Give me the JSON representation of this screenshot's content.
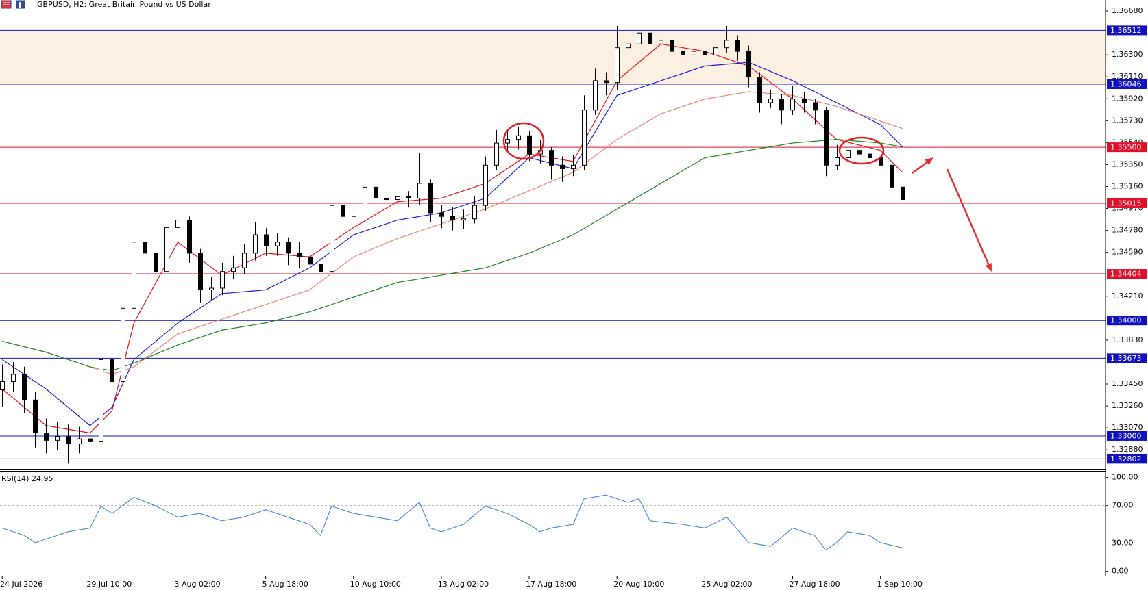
{
  "chart_data": [
    {
      "type": "candlestick",
      "title": "GBPUSD, H2:  Great Britain Pound vs US Dollar",
      "categories": [
        "24 Jul 2026",
        null,
        null,
        null,
        null,
        null,
        null,
        null,
        "29 Jul 10:00",
        null,
        null,
        null,
        null,
        null,
        null,
        null,
        "3 Aug 02:00",
        null,
        null,
        null,
        null,
        null,
        null,
        null,
        "5 Aug 18:00",
        null,
        null,
        null,
        null,
        null,
        null,
        null,
        "10 Aug 10:00",
        null,
        null,
        null,
        null,
        null,
        null,
        null,
        "13 Aug 02:00",
        null,
        null,
        null,
        null,
        null,
        null,
        null,
        "17 Aug 18:00",
        null,
        null,
        null,
        null,
        null,
        null,
        null,
        "20 Aug 10:00",
        null,
        null,
        null,
        null,
        null,
        null,
        null,
        "25 Aug 02:00",
        null,
        null,
        null,
        null,
        null,
        null,
        null,
        "27 Aug 18:00",
        null,
        null,
        null,
        null,
        null,
        null,
        null,
        "1 Sep 10:00",
        null,
        null
      ],
      "open": [
        1.334,
        1.33471,
        1.33534,
        1.33312,
        1.33026,
        1.32962,
        1.32994,
        1.32931,
        1.32975,
        1.3295,
        1.33661,
        1.33471,
        1.34106,
        1.34678,
        1.34583,
        1.34424,
        1.34805,
        1.34869,
        1.34583,
        1.34265,
        1.3428,
        1.34424,
        1.34456,
        1.34583,
        1.34742,
        1.34646,
        1.34678,
        1.34583,
        1.34551,
        1.34488,
        1.34424,
        1.34996,
        1.34901,
        1.34964,
        1.35155,
        1.35059,
        1.35047,
        1.35072,
        1.35059,
        1.35187,
        1.34932,
        1.34901,
        1.34869,
        1.3488,
        1.34996,
        1.35345,
        1.35536,
        1.35568,
        1.356,
        1.35441,
        1.35473,
        1.35345,
        1.35314,
        1.35345,
        1.35822,
        1.36076,
        1.3606,
        1.36362,
        1.36394,
        1.36489,
        1.36394,
        1.36426,
        1.3633,
        1.36299,
        1.3633,
        1.36299,
        1.36362,
        1.36426,
        1.3633,
        1.36108,
        1.35886,
        1.35917,
        1.35822,
        1.35917,
        1.35886,
        1.35822,
        1.35345,
        1.35409,
        1.35473,
        1.35441,
        1.35409,
        1.35345,
        1.35155
      ],
      "high": [
        1.3362,
        1.3364,
        1.336,
        1.3338,
        1.3315,
        1.3312,
        1.331,
        1.3308,
        1.3306,
        1.338,
        1.3374,
        1.3435,
        1.348,
        1.3478,
        1.347,
        1.35005,
        1.3495,
        1.349,
        1.3462,
        1.3438,
        1.345,
        1.3456,
        1.3466,
        1.3485,
        1.348,
        1.3476,
        1.3472,
        1.3468,
        1.3462,
        1.3455,
        1.3508,
        1.3506,
        1.3505,
        1.3525,
        1.352,
        1.3514,
        1.3515,
        1.3512,
        1.3545,
        1.3522,
        1.35,
        1.3498,
        1.3496,
        1.3508,
        1.3542,
        1.3565,
        1.3566,
        1.3568,
        1.3564,
        1.3556,
        1.355,
        1.3542,
        1.3543,
        1.3595,
        1.3618,
        1.3615,
        1.3655,
        1.3652,
        1.3675,
        1.3656,
        1.3653,
        1.3648,
        1.3642,
        1.3644,
        1.364,
        1.3648,
        1.3655,
        1.3647,
        1.3638,
        1.3615,
        1.36,
        1.3596,
        1.3603,
        1.3598,
        1.3592,
        1.3585,
        1.3552,
        1.3562,
        1.3556,
        1.355,
        1.3545,
        1.3538,
        1.3518
      ],
      "low": [
        1.3325,
        1.3338,
        1.332,
        1.329,
        1.3285,
        1.3288,
        1.3276,
        1.3285,
        1.3279,
        1.329,
        1.3338,
        1.334,
        1.34,
        1.3448,
        1.3405,
        1.3435,
        1.347,
        1.345,
        1.3415,
        1.3418,
        1.3422,
        1.3436,
        1.344,
        1.3452,
        1.3456,
        1.3456,
        1.3448,
        1.3445,
        1.3438,
        1.3432,
        1.3438,
        1.3482,
        1.3484,
        1.349,
        1.3498,
        1.3496,
        1.3498,
        1.3498,
        1.35,
        1.3485,
        1.348,
        1.3478,
        1.3479,
        1.3484,
        1.3495,
        1.353,
        1.3546,
        1.3548,
        1.3538,
        1.3536,
        1.3522,
        1.352,
        1.3525,
        1.353,
        1.3578,
        1.3595,
        1.36,
        1.362,
        1.363,
        1.3625,
        1.363,
        1.3618,
        1.362,
        1.3622,
        1.362,
        1.3625,
        1.3632,
        1.3625,
        1.3602,
        1.358,
        1.3584,
        1.357,
        1.3578,
        1.358,
        1.357,
        1.3525,
        1.353,
        1.3538,
        1.3538,
        1.3533,
        1.3525,
        1.351,
        1.3498
      ],
      "close": [
        1.33471,
        1.33534,
        1.33312,
        1.33026,
        1.32962,
        1.32994,
        1.32931,
        1.32975,
        1.3295,
        1.33661,
        1.33471,
        1.34106,
        1.34678,
        1.34583,
        1.34424,
        1.34805,
        1.34869,
        1.34583,
        1.34265,
        1.3428,
        1.34424,
        1.34456,
        1.34583,
        1.34742,
        1.34646,
        1.34678,
        1.34583,
        1.34551,
        1.34488,
        1.34424,
        1.34996,
        1.34901,
        1.34964,
        1.35155,
        1.35059,
        1.35047,
        1.35072,
        1.35059,
        1.35187,
        1.34932,
        1.34901,
        1.34869,
        1.3488,
        1.34996,
        1.35345,
        1.35536,
        1.35568,
        1.356,
        1.35441,
        1.35473,
        1.35345,
        1.35314,
        1.35345,
        1.35822,
        1.36076,
        1.3606,
        1.36362,
        1.36394,
        1.36489,
        1.36394,
        1.36426,
        1.3633,
        1.36299,
        1.3633,
        1.36299,
        1.36362,
        1.36426,
        1.3633,
        1.36108,
        1.35886,
        1.35917,
        1.35822,
        1.35917,
        1.35886,
        1.35822,
        1.35345,
        1.35409,
        1.35473,
        1.35441,
        1.35409,
        1.35345,
        1.35155,
        1.35047
      ],
      "up_color": "#ffffff",
      "down_color": "#000000",
      "edge_color": "#000000",
      "series": [
        {
          "color": "#e81010",
          "x": [
            0,
            4,
            8,
            10,
            12,
            16,
            20,
            24,
            28,
            32,
            36,
            40,
            44,
            48,
            52,
            56,
            60,
            64,
            68,
            72,
            76,
            80,
            82
          ],
          "values": [
            1.33407,
            1.3309,
            1.33026,
            1.33217,
            1.33979,
            1.34678,
            1.34392,
            1.34583,
            1.34551,
            1.34805,
            1.35028,
            1.35059,
            1.35187,
            1.35441,
            1.35377,
            1.36076,
            1.36394,
            1.3633,
            1.36203,
            1.35917,
            1.35568,
            1.35473,
            1.35282
          ]
        },
        {
          "color": "#1c1cd8",
          "x": [
            0,
            4,
            8,
            10,
            12,
            16,
            20,
            24,
            28,
            32,
            36,
            40,
            44,
            48,
            52,
            56,
            60,
            64,
            68,
            72,
            76,
            80,
            82
          ],
          "values": [
            1.33661,
            1.33407,
            1.3309,
            1.33248,
            1.33661,
            1.33979,
            1.34233,
            1.34265,
            1.34456,
            1.34742,
            1.34869,
            1.34932,
            1.35059,
            1.35409,
            1.35314,
            1.35949,
            1.36076,
            1.36203,
            1.36235,
            1.36076,
            1.35886,
            1.35695,
            1.35504
          ]
        },
        {
          "color": "#f48070",
          "x": [
            0,
            4,
            8,
            10,
            12,
            16,
            20,
            24,
            28,
            32,
            36,
            40,
            44,
            48,
            52,
            56,
            60,
            64,
            68,
            72,
            76,
            80,
            82
          ],
          "values": [
            1.3382,
            1.33725,
            1.33598,
            1.33534,
            1.33598,
            1.33884,
            1.34011,
            1.34138,
            1.34265,
            1.34551,
            1.3471,
            1.34837,
            1.34964,
            1.35123,
            1.35282,
            1.35568,
            1.3579,
            1.35917,
            1.35981,
            1.35949,
            1.35854,
            1.35727,
            1.35663
          ]
        },
        {
          "color": "#178a17",
          "x": [
            0,
            4,
            8,
            10,
            12,
            16,
            20,
            24,
            28,
            32,
            36,
            40,
            44,
            48,
            52,
            56,
            60,
            64,
            68,
            72,
            76,
            80,
            82
          ],
          "values": [
            1.3382,
            1.33725,
            1.33598,
            1.33566,
            1.3363,
            1.33788,
            1.33916,
            1.33979,
            1.34074,
            1.34202,
            1.34329,
            1.34392,
            1.34456,
            1.34583,
            1.34742,
            1.34964,
            1.35187,
            1.35409,
            1.35473,
            1.35536,
            1.35568,
            1.35536,
            1.35504
          ]
        }
      ],
      "zone": [
        1.36046,
        1.36512
      ],
      "zone_color": "#fcf0e3",
      "levels": [
        {
          "value": 1.36512,
          "label": "1.36512",
          "color": "#1010c0"
        },
        {
          "value": 1.36046,
          "label": "1.36046",
          "color": "#1010c0"
        },
        {
          "value": 1.355,
          "label": "1.35500",
          "color": "#e0102a"
        },
        {
          "value": 1.35015,
          "label": "1.35015",
          "color": "#e0102a"
        },
        {
          "value": 1.34404,
          "label": "1.34404",
          "color": "#e0102a"
        },
        {
          "value": 1.34,
          "label": "1.34000",
          "color": "#1010c0"
        },
        {
          "value": 1.33673,
          "label": "1.33673",
          "color": "#1010c0"
        },
        {
          "value": 1.33,
          "label": "1.33000",
          "color": "#1010c0"
        },
        {
          "value": 1.32802,
          "label": "1.32802",
          "color": "#1010c0"
        }
      ],
      "xlim": [
        -0.2,
        100.5
      ],
      "ylim": [
        1.32727,
        1.36775
      ],
      "yticks": [
        {
          "value": 1.3668,
          "label": "1.36680"
        },
        {
          "value": 1.363,
          "label": "1.36300"
        },
        {
          "value": 1.3611,
          "label": "1.36110"
        },
        {
          "value": 1.3592,
          "label": "1.35920"
        },
        {
          "value": 1.3573,
          "label": "1.35730"
        },
        {
          "value": 1.3554,
          "label": "1.35540"
        },
        {
          "value": 1.3535,
          "label": "1.35350"
        },
        {
          "value": 1.3516,
          "label": "1.35160"
        },
        {
          "value": 1.3497,
          "label": "1.34970"
        },
        {
          "value": 1.3478,
          "label": "1.34780"
        },
        {
          "value": 1.3459,
          "label": "1.34590"
        },
        {
          "value": 1.3421,
          "label": "1.34210"
        },
        {
          "value": 1.3383,
          "label": "1.33830"
        },
        {
          "value": 1.3345,
          "label": "1.33450"
        },
        {
          "value": 1.3326,
          "label": "1.33260"
        },
        {
          "value": 1.3307,
          "label": "1.33070"
        },
        {
          "value": 1.3288,
          "label": "1.32880"
        }
      ]
    },
    {
      "type": "line",
      "title": "RSI(14) 24.95",
      "color": "#3a86e0",
      "x": [
        0,
        2,
        3,
        4,
        6,
        8,
        9,
        10,
        12,
        14,
        16,
        18,
        20,
        22,
        24,
        26,
        28,
        29,
        30,
        32,
        34,
        36,
        38,
        39,
        40,
        42,
        44,
        46,
        48,
        49,
        50,
        52,
        53,
        55,
        57,
        58,
        59,
        62,
        64,
        66,
        68,
        70,
        72,
        74,
        75,
        76,
        77,
        79,
        80,
        82
      ],
      "values": [
        46.1,
        38.3,
        30.5,
        34.4,
        42.2,
        46.1,
        69.5,
        61.7,
        78.9,
        69.5,
        57.8,
        61.7,
        53.9,
        57.8,
        65.6,
        57.8,
        50,
        38.3,
        69.5,
        61.7,
        57.8,
        53.9,
        73.4,
        46.1,
        42.2,
        50,
        69.5,
        61.7,
        50,
        42.2,
        46.1,
        50,
        77.3,
        81.3,
        73.4,
        77.3,
        53.9,
        50,
        46.1,
        57.8,
        30.5,
        26.6,
        46.1,
        38.3,
        22.7,
        30.5,
        42.2,
        38.3,
        30.5,
        24.95
      ],
      "levels": [
        70,
        30
      ],
      "xlim": [
        -0.2,
        100.5
      ],
      "ylim": [
        -3.9,
        107
      ],
      "yticks": [
        {
          "value": 100,
          "label": "100.00"
        },
        {
          "value": 70,
          "label": "70.00"
        },
        {
          "value": 30,
          "label": "30.00"
        },
        {
          "value": 0,
          "label": "0.00"
        }
      ]
    }
  ]
}
